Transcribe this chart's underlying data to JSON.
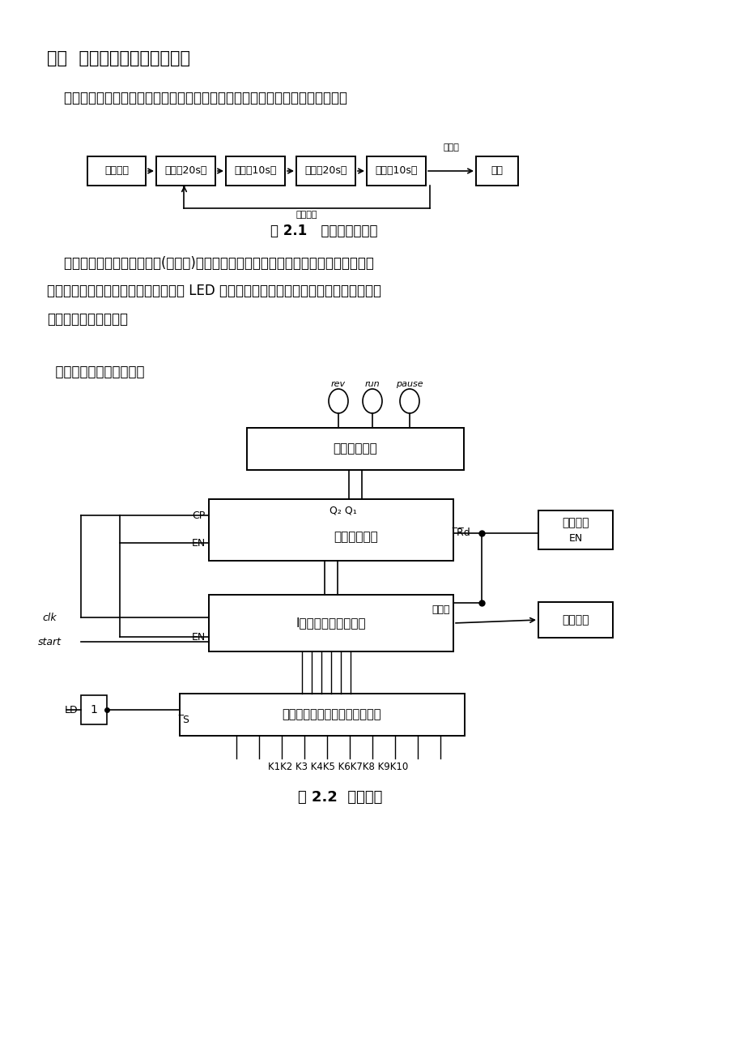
{
  "bg_color": "#ffffff",
  "title2": "二：  实验目的、任务和要求：",
  "para1": "    设计一个洗衣机洗涤程序控制器，控制洗衣机的电动机按下图所示的规律运转：",
  "fig1_caption": "图 2.1   电机运转时序图",
  "para2_line1": "    用两位数码管预置洗涤时间(分钟数)，洗涤过程在送入预置时间后开始运转，洗涤中按",
  "para2_line2": "倒计时方式对洗涤过程作计时显示，用 LED 表示电动机的正、反转，如果定时时间到，则",
  "para2_line3": "停机并发出音响信号。",
  "para3": "  其系统框图如下图所示：",
  "fig2_caption": "图 2.2  系统框图",
  "flowchart_boxes": [
    "定时起动",
    "正转（20s）",
    "暂停（10s）",
    "反转（20s）",
    "暂停（10s）",
    "停止"
  ],
  "block1_label": "译码驱动模块",
  "block2_label": "时序电路模块",
  "block3_label": "I进制减法计数器模块",
  "block4_label": "洗涤预置时间编码寄存电路模块",
  "block5_l1": "音响电路",
  "block5_l2": "EN",
  "block6_label": "时间显示",
  "circle_labels": [
    "rev",
    "run",
    "pause"
  ],
  "signal_timing": "定时到",
  "signal_timing_not": "定时未到",
  "signal_time_arrive": "时间到",
  "signal_clk": "clk",
  "signal_start": "start",
  "signal_ld": "LD",
  "k_labels": "K1K2 K3 K4K5 K6K7K8 K9K10"
}
